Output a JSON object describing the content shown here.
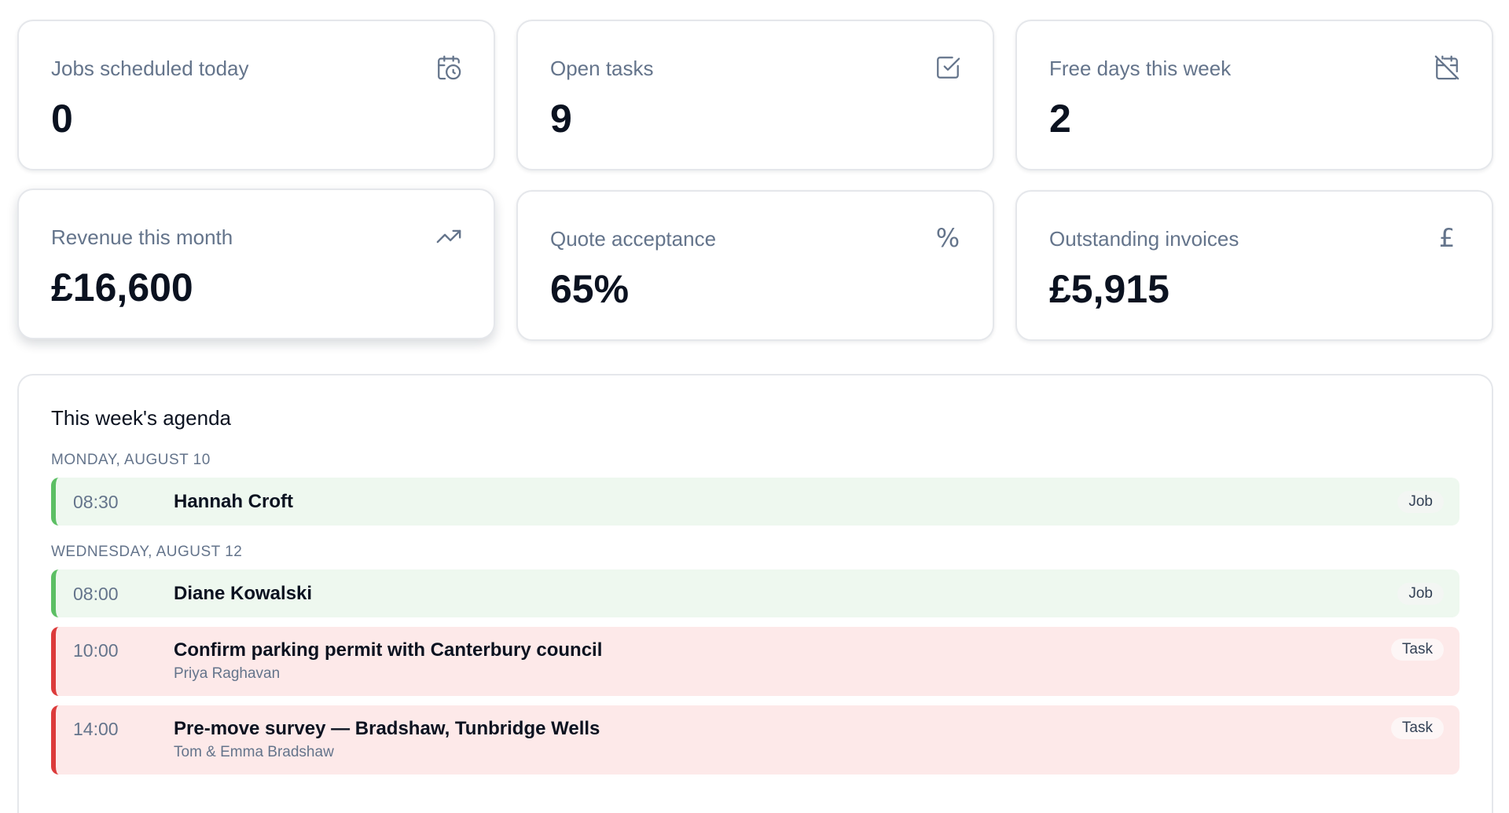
{
  "stats": [
    {
      "label": "Jobs scheduled today",
      "value": "0",
      "icon": "calendar-clock-icon"
    },
    {
      "label": "Open tasks",
      "value": "9",
      "icon": "check-square-icon"
    },
    {
      "label": "Free days this week",
      "value": "2",
      "icon": "calendar-off-icon"
    },
    {
      "label": "Revenue this month",
      "value": "£16,600",
      "icon": "trending-up-icon"
    },
    {
      "label": "Quote acceptance",
      "value": "65%",
      "icon": "percent-icon",
      "glyph": "%"
    },
    {
      "label": "Outstanding invoices",
      "value": "£5,915",
      "icon": "pound-icon",
      "glyph": "£"
    }
  ],
  "agenda": {
    "title": "This week's agenda",
    "days": [
      {
        "header": "MONDAY, AUGUST 10",
        "items": [
          {
            "time": "08:30",
            "title": "Hannah Croft",
            "sub": "",
            "type": "Job"
          }
        ]
      },
      {
        "header": "WEDNESDAY, AUGUST 12",
        "items": [
          {
            "time": "08:00",
            "title": "Diane Kowalski",
            "sub": "",
            "type": "Job"
          },
          {
            "time": "10:00",
            "title": "Confirm parking permit with Canterbury council",
            "sub": "Priya Raghavan",
            "type": "Task"
          },
          {
            "time": "14:00",
            "title": "Pre-move survey — Bradshaw, Tunbridge Wells",
            "sub": "Tom & Emma Bradshaw",
            "type": "Task"
          }
        ]
      }
    ]
  },
  "colors": {
    "job_accent": "#5cbf64",
    "job_background": "#eef8ef",
    "task_accent": "#dc3b3b",
    "task_background": "#fde9e9",
    "muted_text": "#64748b"
  }
}
